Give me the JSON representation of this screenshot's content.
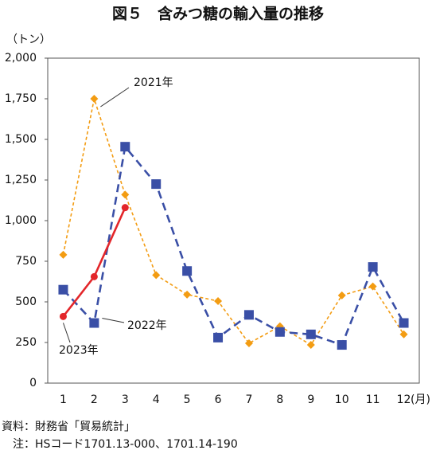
{
  "chart_data": {
    "type": "line",
    "title": "図５　含みつ糖の輸入量の推移",
    "y_unit": "（トン）",
    "x_unit": "(月)",
    "categories": [
      "1",
      "2",
      "3",
      "4",
      "5",
      "6",
      "7",
      "8",
      "9",
      "10",
      "11",
      "12"
    ],
    "series": [
      {
        "name": "2021年",
        "color": "#f39c12",
        "marker": "diamond",
        "dash": "dotted",
        "values": [
          790,
          1750,
          1160,
          665,
          545,
          505,
          245,
          350,
          235,
          540,
          595,
          300
        ]
      },
      {
        "name": "2022年",
        "color": "#3a4fa6",
        "marker": "square",
        "dash": "dashed",
        "values": [
          575,
          370,
          1455,
          1225,
          690,
          280,
          420,
          315,
          300,
          235,
          715,
          370
        ]
      },
      {
        "name": "2023年",
        "color": "#e3262a",
        "marker": "circle",
        "dash": "solid",
        "values": [
          410,
          655,
          1080,
          null,
          null,
          null,
          null,
          null,
          null,
          null,
          null,
          null
        ]
      }
    ],
    "ylim": [
      0,
      2000
    ],
    "yticks": [
      0,
      250,
      500,
      750,
      {
        "value": 1000,
        "label": "1,000"
      },
      {
        "value": 1250,
        "label": "1,250"
      },
      {
        "value": 1500,
        "label": "1,500"
      },
      {
        "value": 1750,
        "label": "1,750"
      },
      {
        "value": 2000,
        "label": "2,000"
      }
    ],
    "grid": false,
    "notes": [
      "資料：財務省「貿易統計」",
      "　注：HSコード1701.13-000、1701.14-190"
    ]
  }
}
